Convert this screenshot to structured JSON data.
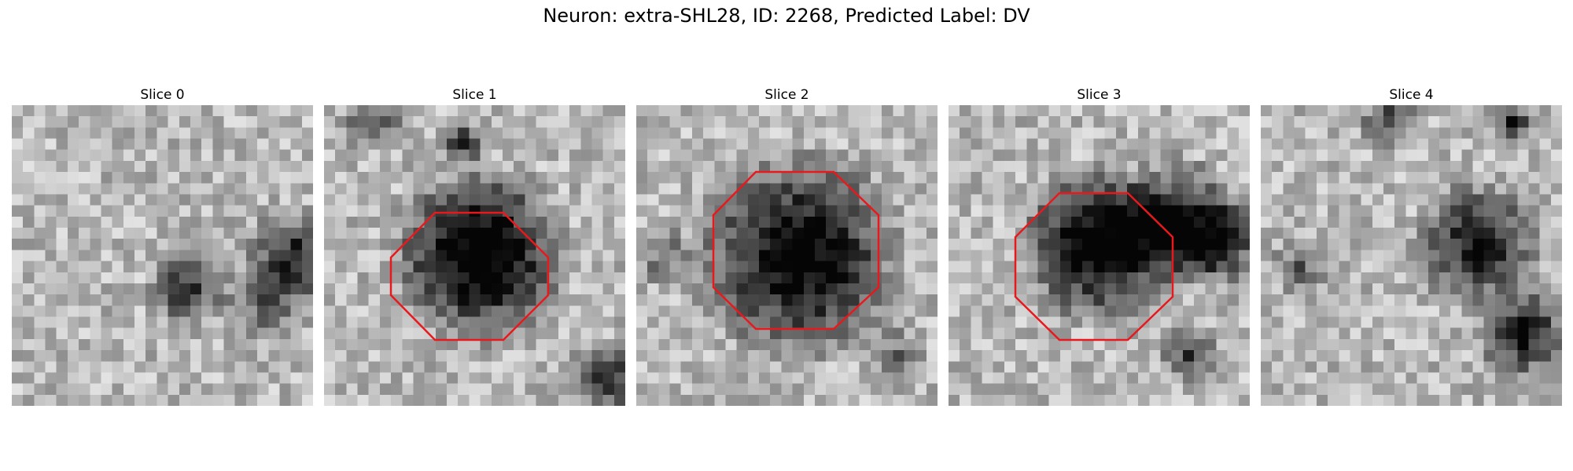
{
  "figure": {
    "title": "Neuron: extra-SHL28, ID: 2268, Predicted Label: DV"
  },
  "slices": [
    {
      "label": "Slice 0",
      "roi": false
    },
    {
      "label": "Slice 1",
      "roi": true
    },
    {
      "label": "Slice 2",
      "roi": true
    },
    {
      "label": "Slice 3",
      "roi": true
    },
    {
      "label": "Slice 4",
      "roi": false
    }
  ],
  "colors": {
    "roi_outline": "#e8191d",
    "background": "#ffffff"
  }
}
